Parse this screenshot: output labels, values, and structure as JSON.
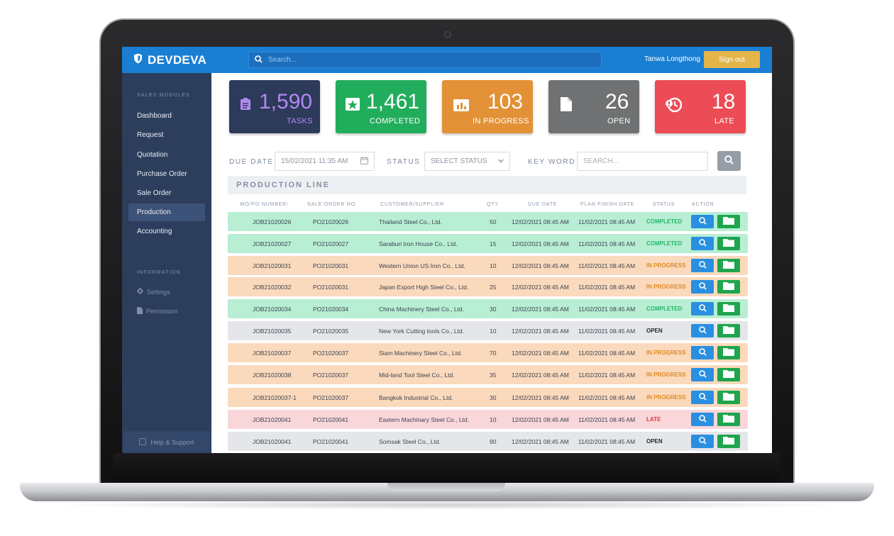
{
  "app": {
    "brand": "DEVDEVA"
  },
  "header": {
    "search_placeholder": "Search...",
    "user_name": "Tanwa Longthong",
    "signout_label": "Sign out"
  },
  "sidebar": {
    "sales_heading": "SALES MODULES",
    "items": [
      {
        "label": "Dashboard"
      },
      {
        "label": "Request"
      },
      {
        "label": "Quotation"
      },
      {
        "label": "Purchase Order"
      },
      {
        "label": "Sale Order"
      },
      {
        "label": "Production"
      },
      {
        "label": "Accounting"
      }
    ],
    "active_item": "Production",
    "info_heading": "INFORMATION",
    "info_items": [
      {
        "label": "Settings",
        "icon": "gear-icon"
      },
      {
        "label": "Permission",
        "icon": "document-icon"
      }
    ],
    "help_label": "Help & Support"
  },
  "stats": [
    {
      "value": "1,590",
      "label": "TASKS",
      "color": "#2d3a5a",
      "label_color": "#b289f2",
      "value_color": "#b289f2",
      "icon": "clipboard-icon"
    },
    {
      "value": "1,461",
      "label": "COMPLETED",
      "color": "#22ad5c",
      "icon": "star-box-icon"
    },
    {
      "value": "103",
      "label": "IN PROGRESS",
      "color": "#e39136",
      "icon": "bar-chart-icon"
    },
    {
      "value": "26",
      "label": "OPEN",
      "color": "#6f7173",
      "icon": "file-icon"
    },
    {
      "value": "18",
      "label": "LATE",
      "color": "#ec4c55",
      "icon": "history-icon"
    }
  ],
  "filters": {
    "due_date_label": "DUE DATE",
    "due_date_value": "15/02/2021 11:35 AM",
    "status_label": "STATUS",
    "status_value": "SELECT STATUS",
    "keyword_label": "KEY WORD",
    "keyword_placeholder": "SEARCH..."
  },
  "section_title": "PRODUCTION LINE",
  "table": {
    "headers": [
      "WO/PO NUMBER↑",
      "SALE ORDER NO.",
      "CUSTOMER/SUPPLIER",
      "QTY",
      "DUE DATE",
      "PLAN FINISH DATE",
      "STATUS",
      "ACTION"
    ],
    "rows": [
      {
        "wo": "JOB21020026",
        "so": "PO21020026",
        "customer": "Thailand Steel Co., Ltd.",
        "qty": "50",
        "due": "12/02/2021 08:45 AM",
        "plan": "11/02/2021 08:45 AM",
        "status": "COMPLETED",
        "state": "completed"
      },
      {
        "wo": "JOB21020027",
        "so": "PO21020027",
        "customer": "Saraburi Iron House Co., Ltd.",
        "qty": "15",
        "due": "12/02/2021 08:45 AM",
        "plan": "11/02/2021 08:45 AM",
        "status": "COMPLETED",
        "state": "completed"
      },
      {
        "wo": "JOB21020031",
        "so": "PO21020031",
        "customer": "Western Union US Iron Co., Ltd.",
        "qty": "10",
        "due": "12/02/2021 08:45 AM",
        "plan": "11/02/2021 08:45 AM",
        "status": "IN PROGRESS",
        "state": "inprogress"
      },
      {
        "wo": "JOB21020032",
        "so": "PO21020031",
        "customer": "Japan Export High Steel Co., Ltd.",
        "qty": "25",
        "due": "12/02/2021 08:45 AM",
        "plan": "11/02/2021 08:45 AM",
        "status": "IN PROGRESS",
        "state": "inprogress"
      },
      {
        "wo": "JOB21020034",
        "so": "PO21020034",
        "customer": "China Machinery Steel Co., Ltd.",
        "qty": "30",
        "due": "12/02/2021 08:45 AM",
        "plan": "11/02/2021 08:45 AM",
        "status": "COMPLETED",
        "state": "completed"
      },
      {
        "wo": "JOB21020035",
        "so": "PO21020035",
        "customer": "New York Cutting tools Co., Ltd.",
        "qty": "10",
        "due": "12/02/2021 08:45 AM",
        "plan": "11/02/2021 08:45 AM",
        "status": "OPEN",
        "state": "open"
      },
      {
        "wo": "JOB21020037",
        "so": "PO21020037",
        "customer": "Siam Machinery Steel Co., Ltd.",
        "qty": "70",
        "due": "12/02/2021 08:45 AM",
        "plan": "11/02/2021 08:45 AM",
        "status": "IN PROGRESS",
        "state": "inprogress"
      },
      {
        "wo": "JOB21020038",
        "so": "PO21020037",
        "customer": "Mid-land Tool Steel Co., Ltd.",
        "qty": "35",
        "due": "12/02/2021 08:45 AM",
        "plan": "11/02/2021 08:45 AM",
        "status": "IN PROGRESS",
        "state": "inprogress"
      },
      {
        "wo": "JOB21020037-1",
        "so": "PO21020037",
        "customer": "Bangkok Industrial Co., Ltd.",
        "qty": "30",
        "due": "12/02/2021 08:45 AM",
        "plan": "11/02/2021 08:45 AM",
        "status": "IN PROGRESS",
        "state": "inprogress"
      },
      {
        "wo": "JOB21020041",
        "so": "PO21020041",
        "customer": "Eastern Machinary Steel Co., Ltd.",
        "qty": "10",
        "due": "12/02/2021 08:45 AM",
        "plan": "11/02/2021 08:45 AM",
        "status": "LATE",
        "state": "late"
      },
      {
        "wo": "JOB21020041",
        "so": "PO21020041",
        "customer": "Somsak Steel Co., Ltd.",
        "qty": "90",
        "due": "12/02/2021 08:45 AM",
        "plan": "11/02/2021 08:45 AM",
        "status": "OPEN",
        "state": "open"
      }
    ]
  },
  "colors": {
    "topbar": "#1a7fd3",
    "sidebar": "#2c3e5c",
    "signout": "#e3b54b",
    "view_button": "#2a8fe0",
    "folder_button": "#1fa54e"
  }
}
